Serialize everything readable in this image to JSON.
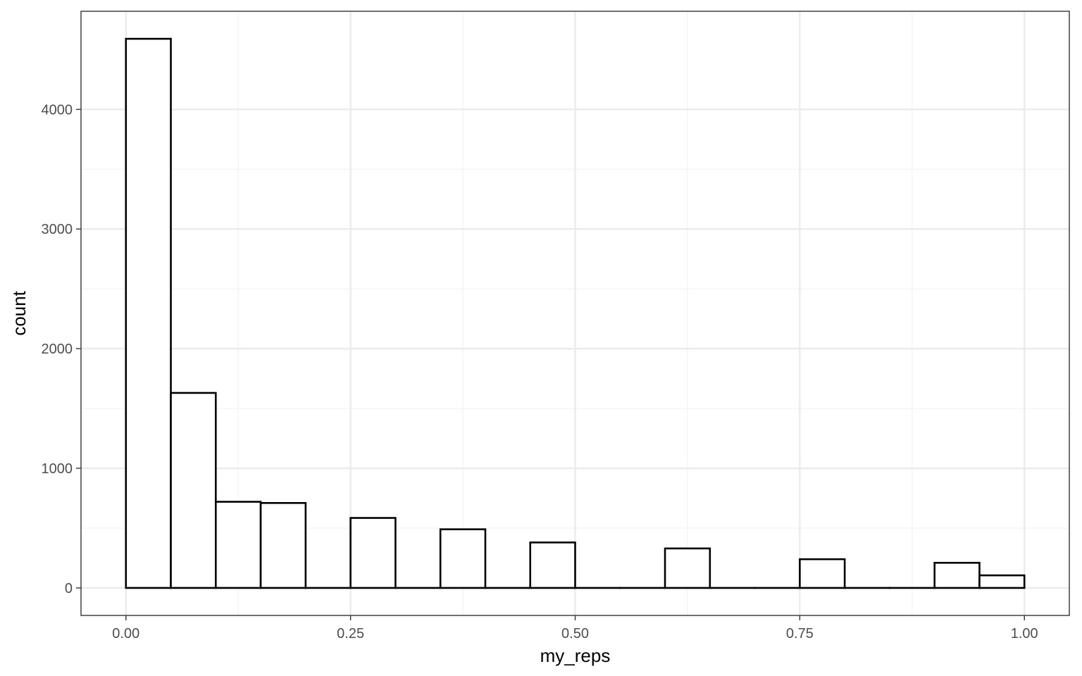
{
  "chart_data": {
    "type": "bar",
    "subtype": "histogram",
    "title": "",
    "xlabel": "my_reps",
    "ylabel": "count",
    "xlim": [
      -0.05,
      1.05
    ],
    "ylim": [
      -230,
      4820
    ],
    "x_ticks": [
      0.0,
      0.25,
      0.5,
      0.75,
      1.0
    ],
    "x_tick_labels": [
      "0.00",
      "0.25",
      "0.50",
      "0.75",
      "1.00"
    ],
    "y_ticks": [
      0,
      1000,
      2000,
      3000,
      4000
    ],
    "y_tick_labels": [
      "0",
      "1000",
      "2000",
      "3000",
      "4000"
    ],
    "grid": true,
    "bin_width": 0.05,
    "bins": [
      {
        "x_start": 0.0,
        "x_end": 0.05,
        "count": 4590
      },
      {
        "x_start": 0.05,
        "x_end": 0.1,
        "count": 1630
      },
      {
        "x_start": 0.1,
        "x_end": 0.15,
        "count": 720
      },
      {
        "x_start": 0.15,
        "x_end": 0.2,
        "count": 710
      },
      {
        "x_start": 0.2,
        "x_end": 0.25,
        "count": 0
      },
      {
        "x_start": 0.25,
        "x_end": 0.3,
        "count": 585
      },
      {
        "x_start": 0.3,
        "x_end": 0.35,
        "count": 0
      },
      {
        "x_start": 0.35,
        "x_end": 0.4,
        "count": 490
      },
      {
        "x_start": 0.4,
        "x_end": 0.45,
        "count": 0
      },
      {
        "x_start": 0.45,
        "x_end": 0.5,
        "count": 380
      },
      {
        "x_start": 0.5,
        "x_end": 0.55,
        "count": 0
      },
      {
        "x_start": 0.55,
        "x_end": 0.6,
        "count": 0
      },
      {
        "x_start": 0.6,
        "x_end": 0.65,
        "count": 330
      },
      {
        "x_start": 0.65,
        "x_end": 0.7,
        "count": 0
      },
      {
        "x_start": 0.7,
        "x_end": 0.75,
        "count": 0
      },
      {
        "x_start": 0.75,
        "x_end": 0.8,
        "count": 240
      },
      {
        "x_start": 0.8,
        "x_end": 0.85,
        "count": 0
      },
      {
        "x_start": 0.85,
        "x_end": 0.9,
        "count": 0
      },
      {
        "x_start": 0.9,
        "x_end": 0.95,
        "count": 210
      },
      {
        "x_start": 0.95,
        "x_end": 1.0,
        "count": 105
      }
    ],
    "colors": {
      "bar_fill": "#ffffff",
      "bar_stroke": "#000000",
      "grid_major": "#ebebeb",
      "grid_minor": "#f2f2f2",
      "panel_border": "#333333",
      "tick_label": "#4d4d4d"
    }
  }
}
